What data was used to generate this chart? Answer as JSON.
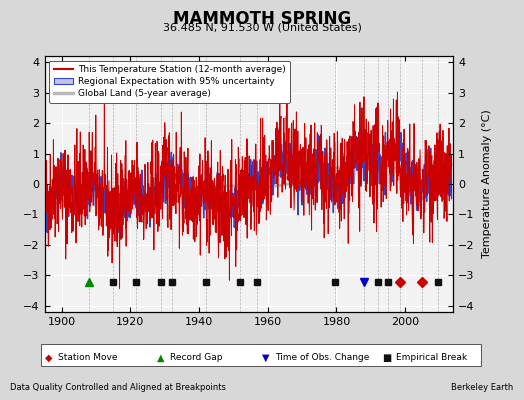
{
  "title": "MAMMOTH SPRING",
  "subtitle": "36.485 N, 91.530 W (United States)",
  "xlabel_left": "Data Quality Controlled and Aligned at Breakpoints",
  "xlabel_right": "Berkeley Earth",
  "ylabel": "Temperature Anomaly (°C)",
  "xlim": [
    1895,
    2014
  ],
  "ylim": [
    -4.2,
    4.2
  ],
  "yticks": [
    -4,
    -3,
    -2,
    -1,
    0,
    1,
    2,
    3,
    4
  ],
  "xticks": [
    1900,
    1920,
    1940,
    1960,
    1980,
    2000
  ],
  "bg_color": "#d8d8d8",
  "plot_bg_color": "#f2f2f2",
  "station_moves": [
    1998.5,
    2005.0
  ],
  "record_gaps": [
    1908.0
  ],
  "obs_changes": [
    1988.0
  ],
  "empirical_breaks": [
    1915.0,
    1921.5,
    1929.0,
    1932.0,
    1942.0,
    1952.0,
    1957.0,
    1979.5,
    1992.0,
    1995.0,
    2009.5
  ],
  "marker_y": -3.2,
  "seed": 42,
  "legend_labels": [
    "This Temperature Station (12-month average)",
    "Regional Expectation with 95% uncertainty",
    "Global Land (5-year average)"
  ],
  "bottom_legend": [
    {
      "symbol": "◆",
      "color": "#cc0000",
      "label": "Station Move"
    },
    {
      "symbol": "▲",
      "color": "#008800",
      "label": "Record Gap"
    },
    {
      "symbol": "▼",
      "color": "#0000cc",
      "label": "Time of Obs. Change"
    },
    {
      "symbol": "■",
      "color": "#111111",
      "label": "Empirical Break"
    }
  ]
}
